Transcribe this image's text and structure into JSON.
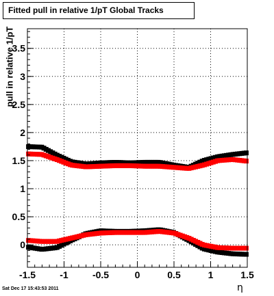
{
  "chart_data": {
    "type": "scatter",
    "title": "Fitted pull in relative 1/pT  Global Tracks",
    "xlabel": "η",
    "ylabel": "pull in relative 1/pT",
    "xlim": [
      -1.5,
      1.5
    ],
    "ylim": [
      -0.4,
      3.85
    ],
    "xticks": [
      "-1.5",
      "-1",
      "-0.5",
      "0",
      "0.5",
      "1",
      "1.5"
    ],
    "yticks": [
      "0",
      "0.5",
      "1",
      "1.5",
      "2",
      "2.5",
      "3",
      "3.5"
    ],
    "grid": true,
    "series": [
      {
        "color": "#000000",
        "x": [
          -1.5,
          -1.3,
          -1.1,
          -0.9,
          -0.7,
          -0.5,
          -0.3,
          -0.1,
          0.1,
          0.3,
          0.5,
          0.7,
          0.9,
          1.1,
          1.3,
          1.5
        ],
        "y": [
          1.75,
          1.74,
          1.6,
          1.48,
          1.44,
          1.46,
          1.47,
          1.46,
          1.47,
          1.47,
          1.42,
          1.38,
          1.5,
          1.57,
          1.61,
          1.64
        ]
      },
      {
        "color": "#ff0000",
        "x": [
          -1.5,
          -1.3,
          -1.1,
          -0.9,
          -0.7,
          -0.5,
          -0.3,
          -0.1,
          0.1,
          0.3,
          0.5,
          0.7,
          0.9,
          1.1,
          1.3,
          1.5
        ],
        "y": [
          1.62,
          1.61,
          1.52,
          1.42,
          1.39,
          1.4,
          1.41,
          1.41,
          1.4,
          1.4,
          1.38,
          1.36,
          1.42,
          1.5,
          1.52,
          1.49
        ]
      },
      {
        "color": "#000000",
        "x": [
          -1.5,
          -1.3,
          -1.1,
          -0.9,
          -0.7,
          -0.5,
          -0.3,
          -0.1,
          0.1,
          0.3,
          0.5,
          0.7,
          0.9,
          1.1,
          1.3,
          1.5
        ],
        "y": [
          -0.04,
          -0.08,
          -0.05,
          0.08,
          0.2,
          0.25,
          0.24,
          0.24,
          0.25,
          0.27,
          0.22,
          0.08,
          -0.07,
          -0.13,
          -0.16,
          -0.17
        ]
      },
      {
        "color": "#ff0000",
        "x": [
          -1.5,
          -1.3,
          -1.1,
          -0.9,
          -0.7,
          -0.5,
          -0.3,
          -0.1,
          0.1,
          0.3,
          0.5,
          0.7,
          0.9,
          1.1,
          1.3,
          1.5
        ],
        "y": [
          0.08,
          0.06,
          0.06,
          0.12,
          0.18,
          0.21,
          0.22,
          0.22,
          0.22,
          0.24,
          0.21,
          0.12,
          0.0,
          -0.05,
          -0.06,
          -0.06
        ]
      }
    ]
  },
  "footer": "Sat Dec 17 15:43:53 2011"
}
